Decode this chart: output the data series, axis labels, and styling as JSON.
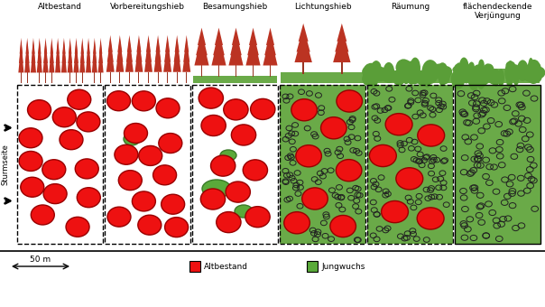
{
  "phases": [
    "Altbestand",
    "Vorbereitungshieb",
    "Besamungshieb",
    "Lichtungshieb",
    "Räumung",
    "flächendeckende\nVerjüngung"
  ],
  "background_color": "#ffffff",
  "panel_bg_white": "#ffffff",
  "panel_bg_green": "#6aaa48",
  "red_color": "#ee1111",
  "red_edge_color": "#990000",
  "green_blob_fill": "#5aaa3a",
  "green_blob_edge": "#3a7a28",
  "tree_color": "#bb3322",
  "tree_trunk_color": "#993322",
  "ground_green": "#6aaa48",
  "dot_edge_color": "#222222",
  "fig_width": 6.04,
  "fig_height": 3.4,
  "sturmseite_label": "Sturmseite",
  "scale_label": "50 m",
  "legend_red_label": "Altbestand",
  "legend_green_label": "Jungwuchs"
}
